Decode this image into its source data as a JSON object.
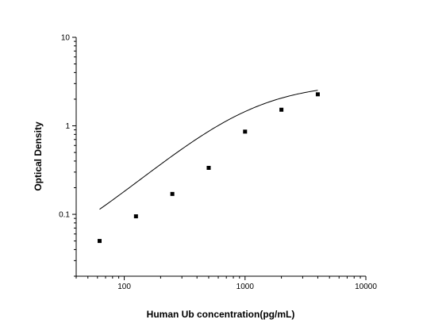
{
  "chart_data": {
    "type": "scatter",
    "title": "",
    "xlabel": "Human Ub concentration(pg/mL)",
    "ylabel": "Optical Density",
    "x_scale": "log",
    "y_scale": "log",
    "xlim": [
      40,
      10000
    ],
    "ylim": [
      0.02,
      10
    ],
    "x_ticks": [
      100,
      1000,
      10000
    ],
    "x_tick_labels": [
      "100",
      "1000",
      "10000"
    ],
    "y_ticks": [
      0.1,
      1,
      10
    ],
    "y_tick_labels": [
      "0.1",
      "1",
      "10"
    ],
    "grid": false,
    "legend": "none",
    "points": {
      "x": [
        62.5,
        125,
        250,
        500,
        1000,
        2000,
        4000
      ],
      "y": [
        0.05,
        0.095,
        0.17,
        0.335,
        0.86,
        1.52,
        2.27
      ]
    },
    "fit_curve": {
      "type": "four-parameter logistic",
      "bottom": 0.02,
      "top": 3.05,
      "ec50": 1100,
      "hill": 1.2
    },
    "colors": {
      "axis": "#000000",
      "marker": "#000000",
      "curve": "#000000"
    }
  }
}
